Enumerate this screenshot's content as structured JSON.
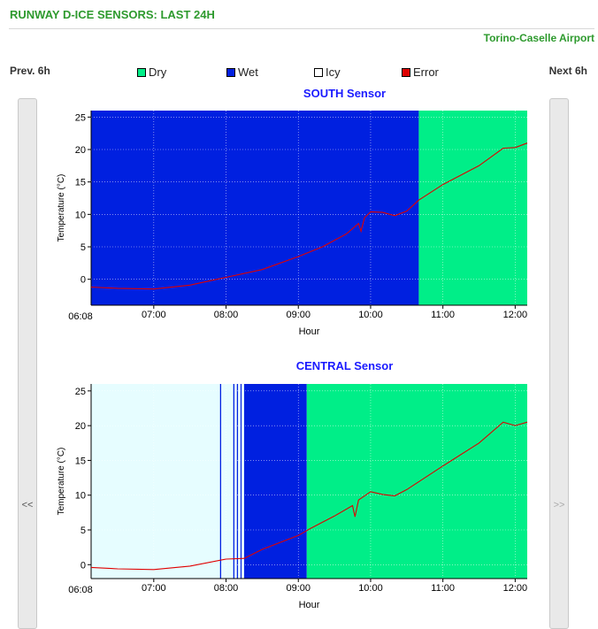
{
  "header": {
    "title": "RUNWAY D-ICE SENSORS: LAST 24H",
    "airport": "Torino-Caselle Airport"
  },
  "nav": {
    "prev_label": "Prev. 6h",
    "next_label": "Next 6h",
    "left_arrow": "<<",
    "right_arrow": ">>"
  },
  "legend": [
    {
      "label": "Dry",
      "color": "#00ee88"
    },
    {
      "label": "Wet",
      "color": "#0020e0"
    },
    {
      "label": "Icy",
      "color": "#ffffff"
    },
    {
      "label": "Error",
      "color": "#dd0000"
    }
  ],
  "chart_data": [
    {
      "type": "line",
      "title": "SOUTH Sensor",
      "xlabel": "Hour",
      "ylabel": "Temperature (°C)",
      "x_start_label": "06:08",
      "x_ticks": [
        "07:00",
        "08:00",
        "09:00",
        "10:00",
        "11:00",
        "12:00"
      ],
      "xlim": [
        "06:08",
        "12:10"
      ],
      "ylim": [
        -4,
        26
      ],
      "y_ticks": [
        0,
        5,
        10,
        15,
        20,
        25
      ],
      "grid": true,
      "line_color": "#e00000",
      "states": [
        {
          "state": "Wet",
          "from": "06:08",
          "to": "10:40",
          "color": "#0020e0"
        },
        {
          "state": "Dry",
          "from": "10:40",
          "to": "12:10",
          "color": "#00ee88"
        }
      ],
      "series": [
        {
          "points": [
            [
              "06:08",
              -1.2
            ],
            [
              "06:30",
              -1.4
            ],
            [
              "07:00",
              -1.5
            ],
            [
              "07:30",
              -0.9
            ],
            [
              "08:00",
              0.3
            ],
            [
              "08:30",
              1.5
            ],
            [
              "09:00",
              3.5
            ],
            [
              "09:20",
              5.0
            ],
            [
              "09:40",
              7.0
            ],
            [
              "09:50",
              8.6
            ],
            [
              "09:52",
              7.4
            ],
            [
              "09:55",
              9.5
            ],
            [
              "10:00",
              10.4
            ],
            [
              "10:10",
              10.3
            ],
            [
              "10:20",
              9.8
            ],
            [
              "10:30",
              10.5
            ],
            [
              "10:40",
              12.2
            ],
            [
              "11:00",
              14.6
            ],
            [
              "11:30",
              17.5
            ],
            [
              "11:50",
              20.2
            ],
            [
              "12:00",
              20.3
            ],
            [
              "12:10",
              21.0
            ]
          ]
        }
      ]
    },
    {
      "type": "line",
      "title": "CENTRAL Sensor",
      "xlabel": "Hour",
      "ylabel": "Temperature (°C)",
      "x_start_label": "06:08",
      "x_ticks": [
        "07:00",
        "08:00",
        "09:00",
        "10:00",
        "11:00",
        "12:00"
      ],
      "xlim": [
        "06:08",
        "12:10"
      ],
      "ylim": [
        -2,
        26
      ],
      "y_ticks": [
        0,
        5,
        10,
        15,
        20,
        25
      ],
      "grid": true,
      "line_color": "#e00000",
      "states": [
        {
          "state": "Icy",
          "from": "06:08",
          "to": "07:55",
          "color": "#e6fdff"
        },
        {
          "state": "Wet",
          "from": "07:55",
          "to": "07:56",
          "color": "#0020e0"
        },
        {
          "state": "Icy",
          "from": "07:56",
          "to": "08:06",
          "color": "#e6fdff"
        },
        {
          "state": "Wet",
          "from": "08:06",
          "to": "08:07",
          "color": "#0020e0"
        },
        {
          "state": "Icy",
          "from": "08:07",
          "to": "08:09",
          "color": "#e6fdff"
        },
        {
          "state": "Wet",
          "from": "08:09",
          "to": "08:10",
          "color": "#0020e0"
        },
        {
          "state": "Icy",
          "from": "08:10",
          "to": "08:12",
          "color": "#e6fdff"
        },
        {
          "state": "Wet",
          "from": "08:12",
          "to": "08:13",
          "color": "#0020e0"
        },
        {
          "state": "Icy",
          "from": "08:13",
          "to": "08:15",
          "color": "#e6fdff"
        },
        {
          "state": "Wet",
          "from": "08:15",
          "to": "09:07",
          "color": "#0020e0"
        },
        {
          "state": "Dry",
          "from": "09:07",
          "to": "12:10",
          "color": "#00ee88"
        }
      ],
      "series": [
        {
          "points": [
            [
              "06:08",
              -0.4
            ],
            [
              "06:30",
              -0.6
            ],
            [
              "07:00",
              -0.7
            ],
            [
              "07:30",
              -0.2
            ],
            [
              "08:00",
              0.8
            ],
            [
              "08:15",
              0.9
            ],
            [
              "08:30",
              2.2
            ],
            [
              "08:45",
              3.2
            ],
            [
              "09:00",
              4.2
            ],
            [
              "09:10",
              5.2
            ],
            [
              "09:30",
              7.0
            ],
            [
              "09:45",
              8.5
            ],
            [
              "09:47",
              6.9
            ],
            [
              "09:50",
              9.3
            ],
            [
              "10:00",
              10.5
            ],
            [
              "10:10",
              10.1
            ],
            [
              "10:20",
              9.9
            ],
            [
              "10:30",
              10.8
            ],
            [
              "11:00",
              14.2
            ],
            [
              "11:30",
              17.5
            ],
            [
              "11:50",
              20.5
            ],
            [
              "12:00",
              20.0
            ],
            [
              "12:10",
              20.5
            ]
          ]
        }
      ]
    }
  ]
}
